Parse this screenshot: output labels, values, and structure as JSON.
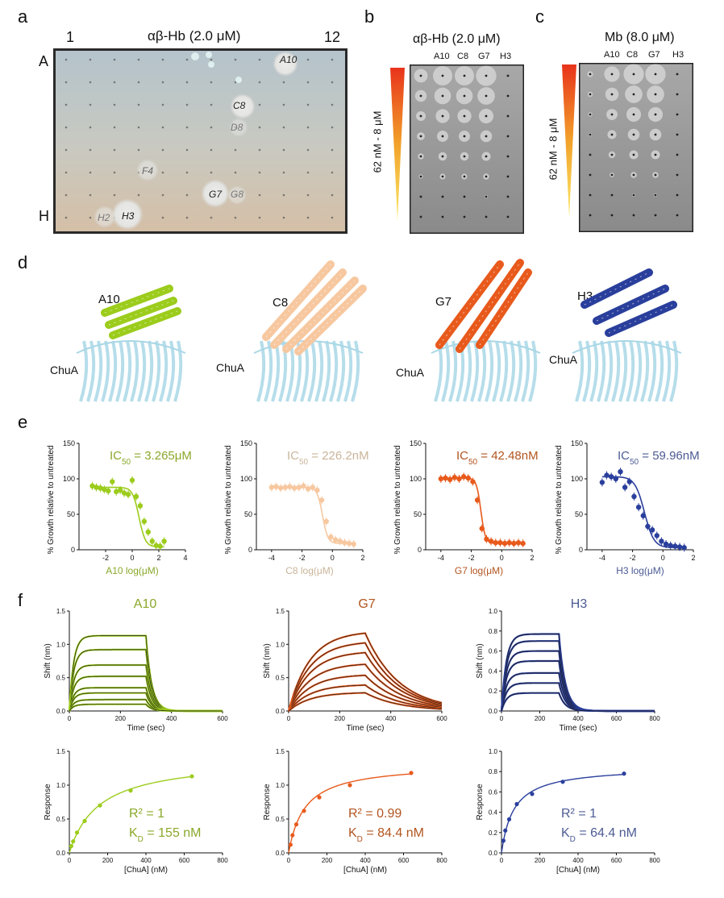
{
  "colors": {
    "a10": "#9ccc1c",
    "c8": "#f7c8a0",
    "g7": "#e85a1c",
    "h3": "#2a3f9c",
    "chua": "#a9d7e6",
    "a10_text": "#8aa82a",
    "c8_text": "#c9b59a",
    "g7_text": "#b2551f",
    "h3_text": "#4c5b94"
  },
  "panel_labels": {
    "a": "a",
    "b": "b",
    "c": "c",
    "d": "d",
    "e": "e",
    "f": "f"
  },
  "panel_a": {
    "title": "αβ-Hb (2.0 μM)",
    "col_first": "1",
    "col_last": "12",
    "row_first": "A",
    "row_last": "H",
    "wells": {
      "A10": "A10",
      "C8": "C8",
      "D8": "D8",
      "F4": "F4",
      "G7": "G7",
      "G8": "G8",
      "H2": "H2",
      "H3": "H3"
    }
  },
  "panel_b": {
    "title": "αβ-Hb (2.0 μM)",
    "columns": [
      "A10",
      "C8",
      "G7",
      "H3"
    ],
    "gradient_label": "62 nM - 8 μM"
  },
  "panel_c": {
    "title": "Mb (8.0 μM)",
    "columns": [
      "A10",
      "C8",
      "G7",
      "H3"
    ],
    "gradient_label": "62 nM - 8 μM"
  },
  "panel_d": {
    "binders": [
      "A10",
      "C8",
      "G7",
      "H3"
    ],
    "receptor": "ChuA"
  },
  "panel_e": {
    "ylabel": "% Growth relative to untreated",
    "charts": [
      {
        "name": "A10",
        "xlabel": "A10 log(μM)",
        "ic50_prefix": "IC",
        "ic50_sub": "50",
        "ic50_value": " = 3.265μM",
        "xticks": [
          "-2",
          "0",
          "2",
          "4"
        ],
        "yticks": [
          "0",
          "50",
          "100",
          "150"
        ]
      },
      {
        "name": "C8",
        "xlabel": "C8 log(μM)",
        "ic50_prefix": "IC",
        "ic50_sub": "50",
        "ic50_value": " = 226.2nM",
        "xticks": [
          "-4",
          "-2",
          "0",
          "2"
        ],
        "yticks": [
          "0",
          "50",
          "100",
          "150"
        ]
      },
      {
        "name": "G7",
        "xlabel": "G7 log(μM)",
        "ic50_prefix": "IC",
        "ic50_sub": "50",
        "ic50_value": " = 42.48nM",
        "xticks": [
          "-4",
          "-2",
          "0",
          "2"
        ],
        "yticks": [
          "0",
          "50",
          "100",
          "150"
        ]
      },
      {
        "name": "H3",
        "xlabel": "H3 log(μM)",
        "ic50_prefix": "IC",
        "ic50_sub": "50",
        "ic50_value": " = 59.96nM",
        "xticks": [
          "-4",
          "-2",
          "0",
          "2"
        ],
        "yticks": [
          "0",
          "50",
          "100",
          "150"
        ]
      }
    ]
  },
  "panel_f": {
    "sensorgram_ylabel": "Shift (nm)",
    "sensorgram_xlabel": "Time (sec)",
    "binding_ylabel": "Response",
    "binding_xlabel": "[ChuA] (nM)",
    "charts": [
      {
        "name": "A10",
        "r2": "R² = 1",
        "kd_prefix": "K",
        "kd_sub": "D",
        "kd_value": " = 155 nM",
        "sensor_yticks": [
          "0.0",
          "0.5",
          "1.0",
          "1.5"
        ],
        "sensor_xticks": [
          "0",
          "200",
          "400",
          "600"
        ],
        "bind_yticks": [
          "0.0",
          "0.5",
          "1.0",
          "1.5"
        ],
        "bind_xticks": [
          "0",
          "200",
          "400",
          "600",
          "800"
        ]
      },
      {
        "name": "G7",
        "r2": "R² = 0.99",
        "kd_prefix": "K",
        "kd_sub": "D",
        "kd_value": " = 84.4 nM",
        "sensor_yticks": [
          "0.0",
          "0.5",
          "1.0",
          "1.5"
        ],
        "sensor_xticks": [
          "0",
          "200",
          "400",
          "600"
        ],
        "bind_yticks": [
          "0.0",
          "0.5",
          "1.0",
          "1.5"
        ],
        "bind_xticks": [
          "0",
          "200",
          "400",
          "600",
          "800"
        ]
      },
      {
        "name": "H3",
        "r2": "R² = 1",
        "kd_prefix": "K",
        "kd_sub": "D",
        "kd_value": " = 64.4 nM",
        "sensor_yticks": [
          "0.0",
          "0.2",
          "0.4",
          "0.6",
          "0.8",
          "1.0"
        ],
        "sensor_xticks": [
          "0",
          "200",
          "400",
          "600",
          "800"
        ],
        "bind_yticks": [
          "0.0",
          "0.2",
          "0.4",
          "0.6",
          "0.8",
          "1.0"
        ],
        "bind_xticks": [
          "0",
          "200",
          "400",
          "600",
          "800"
        ]
      }
    ]
  },
  "chart_data": [
    {
      "type": "scatter",
      "title": "A10",
      "xlabel": "A10 log(μM)",
      "ylabel": "% Growth relative to untreated",
      "xlim": [
        -4,
        4
      ],
      "ylim": [
        0,
        150
      ],
      "x": [
        -3.0,
        -2.7,
        -2.4,
        -2.1,
        -1.8,
        -1.5,
        -1.2,
        -0.9,
        -0.6,
        -0.3,
        0.0,
        0.3,
        0.6,
        0.9,
        1.2,
        1.5,
        1.8,
        2.1,
        2.4
      ],
      "y": [
        90,
        88,
        87,
        85,
        83,
        96,
        82,
        84,
        80,
        78,
        98,
        75,
        62,
        40,
        25,
        12,
        6,
        5,
        12
      ],
      "fit": {
        "top": 88,
        "bottom": 4,
        "ic50_log": 0.51,
        "hill": 1.8
      }
    },
    {
      "type": "scatter",
      "title": "C8",
      "xlabel": "C8 log(μM)",
      "ylabel": "% Growth relative to untreated",
      "xlim": [
        -5,
        2
      ],
      "ylim": [
        0,
        150
      ],
      "x": [
        -4.0,
        -3.7,
        -3.4,
        -3.1,
        -2.8,
        -2.5,
        -2.2,
        -1.9,
        -1.6,
        -1.3,
        -1.0,
        -0.7,
        -0.4,
        -0.1,
        0.2,
        0.5,
        0.8,
        1.1,
        1.4
      ],
      "y": [
        88,
        89,
        87,
        88,
        89,
        87,
        88,
        90,
        86,
        88,
        84,
        70,
        40,
        18,
        14,
        12,
        10,
        9,
        8
      ],
      "fit": {
        "top": 88,
        "bottom": 9,
        "ic50_log": -0.65,
        "hill": 2.5
      }
    },
    {
      "type": "scatter",
      "title": "G7",
      "xlabel": "G7 log(μM)",
      "ylabel": "% Growth relative to untreated",
      "xlim": [
        -5,
        2
      ],
      "ylim": [
        0,
        150
      ],
      "x": [
        -4.0,
        -3.7,
        -3.4,
        -3.1,
        -2.8,
        -2.5,
        -2.2,
        -1.9,
        -1.6,
        -1.3,
        -1.0,
        -0.7,
        -0.4,
        -0.1,
        0.2,
        0.5,
        0.8,
        1.1,
        1.4
      ],
      "y": [
        100,
        101,
        99,
        102,
        100,
        103,
        101,
        96,
        70,
        30,
        15,
        12,
        10,
        10,
        9,
        10,
        9,
        10,
        9
      ],
      "fit": {
        "top": 101,
        "bottom": 9,
        "ic50_log": -1.37,
        "hill": 3.0
      }
    },
    {
      "type": "scatter",
      "title": "H3",
      "xlabel": "H3 log(μM)",
      "ylabel": "% Growth relative to untreated",
      "xlim": [
        -5,
        2
      ],
      "ylim": [
        0,
        150
      ],
      "x": [
        -4.0,
        -3.7,
        -3.4,
        -3.1,
        -2.8,
        -2.5,
        -2.2,
        -1.9,
        -1.6,
        -1.3,
        -1.0,
        -0.7,
        -0.4,
        -0.1,
        0.2,
        0.5,
        0.8,
        1.1,
        1.4
      ],
      "y": [
        95,
        105,
        103,
        100,
        110,
        88,
        96,
        75,
        60,
        48,
        33,
        28,
        20,
        12,
        8,
        6,
        5,
        4,
        3
      ],
      "fit": {
        "top": 103,
        "bottom": 3,
        "ic50_log": -1.22,
        "hill": 1.4
      }
    },
    {
      "type": "line",
      "title": "A10 sensorgram",
      "xlabel": "Time (sec)",
      "ylabel": "Shift (nm)",
      "xlim": [
        0,
        600
      ],
      "ylim": [
        0,
        1.5
      ],
      "series": [
        {
          "name": "plateaus",
          "values": [
            1.13,
            0.92,
            0.69,
            0.52,
            0.35,
            0.27,
            0.17,
            0.1
          ]
        }
      ],
      "kinetics": {
        "start": 0,
        "switch": 300,
        "end": 600,
        "kon": 0.06,
        "koff": 0.045
      }
    },
    {
      "type": "line",
      "title": "G7 sensorgram",
      "xlabel": "Time (sec)",
      "ylabel": "Shift (nm)",
      "xlim": [
        0,
        600
      ],
      "ylim": [
        0,
        1.5
      ],
      "series": [
        {
          "name": "plateaus",
          "values": [
            1.2,
            1.05,
            0.9,
            0.72,
            0.55,
            0.4,
            0.28
          ]
        }
      ],
      "kinetics": {
        "start": 0,
        "switch": 300,
        "end": 600,
        "kon": 0.012,
        "koff": 0.0075
      }
    },
    {
      "type": "line",
      "title": "H3 sensorgram",
      "xlabel": "Time (sec)",
      "ylabel": "Shift (nm)",
      "xlim": [
        0,
        800
      ],
      "ylim": [
        0,
        1.0
      ],
      "series": [
        {
          "name": "plateaus",
          "values": [
            0.77,
            0.7,
            0.6,
            0.5,
            0.38,
            0.28,
            0.18
          ]
        }
      ],
      "kinetics": {
        "start": 0,
        "switch": 300,
        "end": 800,
        "kon": 0.04,
        "koff": 0.03
      }
    },
    {
      "type": "scatter",
      "title": "A10 binding",
      "xlabel": "[ChuA] (nM)",
      "ylabel": "Response",
      "xlim": [
        0,
        800
      ],
      "ylim": [
        0,
        1.5
      ],
      "x": [
        10,
        20,
        40,
        80,
        160,
        320,
        640
      ],
      "y": [
        0.1,
        0.17,
        0.3,
        0.47,
        0.7,
        0.92,
        1.13
      ],
      "fit": {
        "bmax": 1.4,
        "kd": 155
      }
    },
    {
      "type": "scatter",
      "title": "G7 binding",
      "xlabel": "[ChuA] (nM)",
      "ylabel": "Response",
      "xlim": [
        0,
        800
      ],
      "ylim": [
        0,
        1.5
      ],
      "x": [
        10,
        20,
        40,
        80,
        160,
        320,
        640
      ],
      "y": [
        0.12,
        0.26,
        0.42,
        0.62,
        0.82,
        1.0,
        1.18
      ],
      "fit": {
        "bmax": 1.32,
        "kd": 84.4
      }
    },
    {
      "type": "scatter",
      "title": "H3 binding",
      "xlabel": "[ChuA] (nM)",
      "ylabel": "Response",
      "xlim": [
        0,
        800
      ],
      "ylim": [
        0,
        1.0
      ],
      "x": [
        10,
        20,
        40,
        80,
        160,
        320,
        640
      ],
      "y": [
        0.12,
        0.22,
        0.33,
        0.48,
        0.58,
        0.7,
        0.78
      ],
      "fit": {
        "bmax": 0.85,
        "kd": 64.4
      }
    }
  ]
}
